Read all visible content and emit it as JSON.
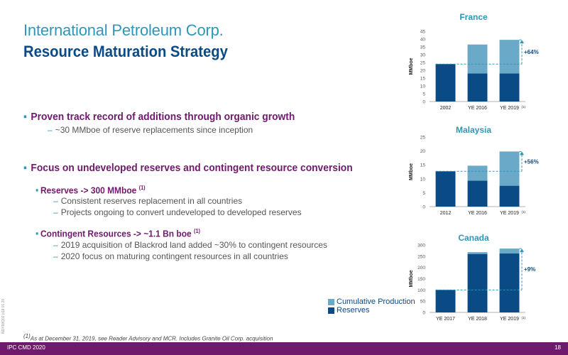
{
  "header": {
    "company": "International Petroleum Corp.",
    "title": "Resource Maturation Strategy"
  },
  "bullets": {
    "b1": {
      "text": "Proven track record of additions through organic growth"
    },
    "b1_sub": "~30 MMboe of reserve replacements since inception",
    "b2": {
      "text": "Focus on undeveloped reserves and contingent resource conversion"
    },
    "b2_reserves": {
      "text": "Reserves -> 300 MMboe",
      "sup": "(1)"
    },
    "b2_reserves_sub1": "Consistent reserves replacement in all countries",
    "b2_reserves_sub2": "Projects ongoing to convert undeveloped to developed reserves",
    "b2_contingent": {
      "text": "Contingent Resources -> ~1.1 Bn boe",
      "sup": "(1)"
    },
    "b2_contingent_sub1": "2019 acquisition of Blackrod land added ~30% to contingent resources",
    "b2_contingent_sub2": "2020 focus on maturing contingent resources in all countries"
  },
  "legend": {
    "cumulative": "Cumulative Production",
    "reserves": "Reserves"
  },
  "footnote": {
    "sup": "(1)",
    "text": "As at December 31, 2019, see Reader Advisory and MCR. Includes Granite Oil Corp. acquisition"
  },
  "footer": {
    "text": "IPC CMD 2020",
    "page": "18"
  },
  "side_text": "NDY88Q02 p18 01.20",
  "colors": {
    "reserves": "#0a4b85",
    "cumulative": "#6aaac8",
    "accent": "#2c97b8",
    "brand": "#6f1a6c"
  },
  "chart_data": [
    {
      "type": "bar",
      "stacked": true,
      "title": "France",
      "ylabel": "MMboe",
      "categories": [
        "2002",
        "YE 2016",
        "YE 2019"
      ],
      "category_sups": [
        "",
        "",
        "(1)"
      ],
      "series": [
        {
          "name": "Reserves",
          "values": [
            24,
            18,
            18
          ]
        },
        {
          "name": "Cumulative Production",
          "values": [
            0,
            18.5,
            21.5
          ]
        }
      ],
      "ylim": [
        0,
        45
      ],
      "yticks": [
        0,
        5,
        10,
        15,
        20,
        25,
        30,
        35,
        40,
        45
      ],
      "annotation": "+64%"
    },
    {
      "type": "bar",
      "stacked": true,
      "title": "Malaysia",
      "ylabel": "MMboe",
      "categories": [
        "2012",
        "YE 2016",
        "YE 2019"
      ],
      "category_sups": [
        "",
        "",
        "(1)"
      ],
      "series": [
        {
          "name": "Reserves",
          "values": [
            12.7,
            9.3,
            7.5
          ]
        },
        {
          "name": "Cumulative Production",
          "values": [
            0,
            5.4,
            12.3
          ]
        }
      ],
      "ylim": [
        0,
        25
      ],
      "yticks": [
        0,
        5,
        10,
        15,
        20,
        25
      ],
      "annotation": "+56%"
    },
    {
      "type": "bar",
      "stacked": true,
      "title": "Canada",
      "ylabel": "MMboe",
      "categories": [
        "YE 2017",
        "YE 2018",
        "YE 2019"
      ],
      "category_sups": [
        "",
        "",
        "(1)"
      ],
      "series": [
        {
          "name": "Reserves",
          "values": [
            100,
            260,
            262
          ]
        },
        {
          "name": "Cumulative Production",
          "values": [
            0,
            8,
            22
          ]
        }
      ],
      "ylim": [
        0,
        300
      ],
      "yticks": [
        0,
        50,
        100,
        150,
        200,
        250,
        300
      ],
      "annotation": "+9%"
    }
  ]
}
